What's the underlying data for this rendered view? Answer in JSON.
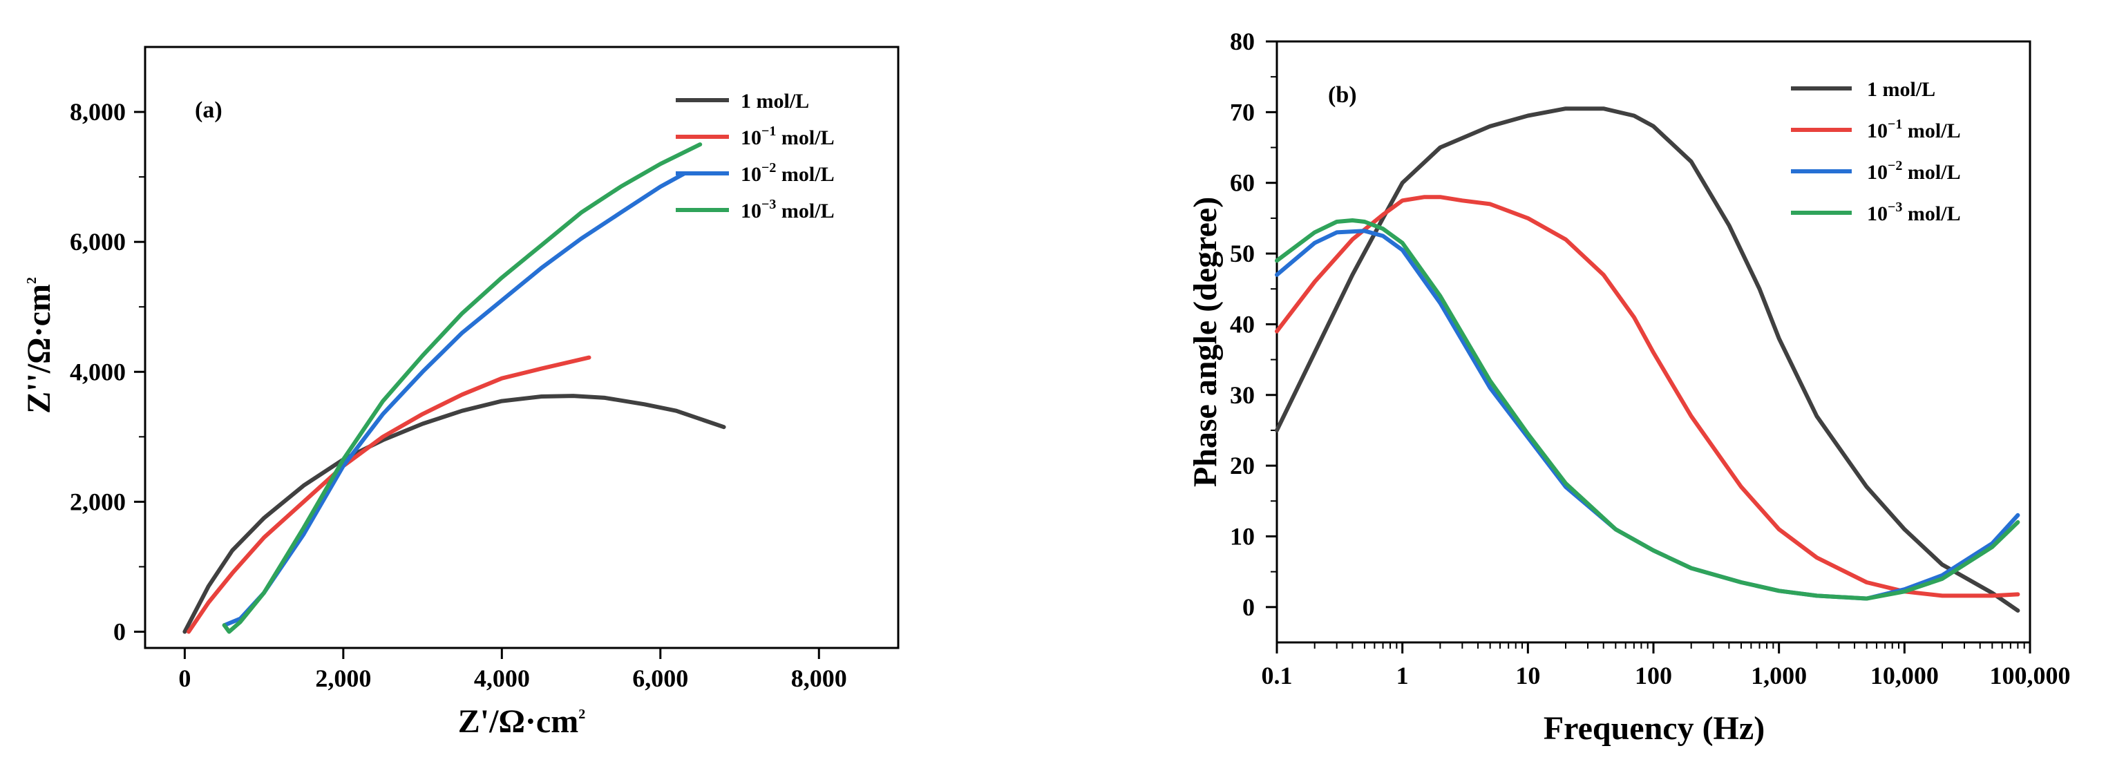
{
  "chart_data": [
    {
      "type": "line",
      "panel_label": "(a)",
      "xlabel": "Z'/Ω·cm",
      "xlabel_sup": "2",
      "ylabel": "Z''/Ω·cm",
      "ylabel_sup": "2",
      "xlim": [
        -500,
        9000
      ],
      "ylim": [
        -250,
        9000
      ],
      "xticks": [
        0,
        2000,
        4000,
        6000,
        8000
      ],
      "xtick_labels": [
        "0",
        "2,000",
        "4,000",
        "6,000",
        "8,000"
      ],
      "yticks": [
        0,
        2000,
        4000,
        6000,
        8000
      ],
      "ytick_labels": [
        "0",
        "2,000",
        "4,000",
        "6,000",
        "8,000"
      ],
      "legend_position": "top-right",
      "series": [
        {
          "name": "1 mol/L",
          "color": "#404040",
          "x": [
            0,
            300,
            600,
            1000,
            1500,
            2000,
            2500,
            3000,
            3500,
            4000,
            4500,
            4900,
            5300,
            5800,
            6200,
            6800
          ],
          "y": [
            0,
            700,
            1250,
            1750,
            2250,
            2650,
            2950,
            3200,
            3400,
            3550,
            3620,
            3630,
            3600,
            3500,
            3400,
            3150
          ]
        },
        {
          "name": "10",
          "name_sup": "−1",
          "name_suffix": " mol/L",
          "color": "#e8413c",
          "x": [
            50,
            300,
            600,
            1000,
            1500,
            2000,
            2500,
            3000,
            3500,
            4000,
            4500,
            5100
          ],
          "y": [
            0,
            450,
            900,
            1450,
            2000,
            2550,
            3000,
            3350,
            3650,
            3900,
            4050,
            4220
          ]
        },
        {
          "name": "10",
          "name_sup": "−2",
          "name_suffix": " mol/L",
          "color": "#2670d4",
          "x": [
            500,
            700,
            1000,
            1500,
            2000,
            2500,
            3000,
            3500,
            4000,
            4500,
            5000,
            5500,
            6000,
            6300
          ],
          "y": [
            100,
            200,
            600,
            1500,
            2550,
            3350,
            4000,
            4600,
            5100,
            5600,
            6050,
            6450,
            6850,
            7050
          ]
        },
        {
          "name": "10",
          "name_sup": "−3",
          "name_suffix": " mol/L",
          "color": "#2fa35a",
          "x": [
            500,
            560,
            700,
            1000,
            1500,
            2000,
            2500,
            3000,
            3500,
            4000,
            4500,
            5000,
            5500,
            6000,
            6500
          ],
          "y": [
            100,
            0,
            150,
            600,
            1600,
            2650,
            3550,
            4250,
            4900,
            5450,
            5950,
            6450,
            6850,
            7200,
            7500
          ]
        }
      ]
    },
    {
      "type": "line",
      "panel_label": "(b)",
      "xlabel": "Frequency (Hz)",
      "ylabel": "Phase angle (degree)",
      "xscale": "log",
      "xlim": [
        0.1,
        100000
      ],
      "ylim": [
        -5,
        80
      ],
      "xticks": [
        0.1,
        1,
        10,
        100,
        1000,
        10000,
        100000
      ],
      "xtick_labels": [
        "0.1",
        "1",
        "10",
        "100",
        "1,000",
        "10,000",
        "100,000"
      ],
      "yticks": [
        0,
        10,
        20,
        30,
        40,
        50,
        60,
        70,
        80
      ],
      "ytick_labels": [
        "0",
        "10",
        "20",
        "30",
        "40",
        "50",
        "60",
        "70",
        "80"
      ],
      "legend_position": "top-right",
      "series": [
        {
          "name": "1 mol/L",
          "color": "#404040",
          "x": [
            0.1,
            0.2,
            0.4,
            0.7,
            1,
            2,
            5,
            10,
            20,
            40,
            70,
            100,
            200,
            400,
            700,
            1000,
            2000,
            5000,
            10000,
            20000,
            50000,
            80000
          ],
          "y": [
            25,
            36,
            47,
            55,
            60,
            65,
            68,
            69.5,
            70.5,
            70.5,
            69.5,
            68,
            63,
            54,
            45,
            38,
            27,
            17,
            11,
            6,
            2,
            -0.5
          ]
        },
        {
          "name": "10",
          "name_sup": "−1",
          "name_suffix": " mol/L",
          "color": "#e8413c",
          "x": [
            0.1,
            0.2,
            0.4,
            0.7,
            1,
            1.5,
            2,
            3,
            5,
            10,
            20,
            40,
            70,
            100,
            200,
            500,
            1000,
            2000,
            5000,
            10000,
            20000,
            50000,
            80000
          ],
          "y": [
            39,
            46,
            52,
            55.5,
            57.5,
            58,
            58,
            57.5,
            57,
            55,
            52,
            47,
            41,
            36,
            27,
            17,
            11,
            7,
            3.5,
            2.2,
            1.6,
            1.6,
            1.8
          ]
        },
        {
          "name": "10",
          "name_sup": "−2",
          "name_suffix": " mol/L",
          "color": "#2670d4",
          "x": [
            0.1,
            0.2,
            0.3,
            0.5,
            0.7,
            1,
            2,
            5,
            10,
            20,
            50,
            100,
            200,
            500,
            1000,
            2000,
            5000,
            10000,
            20000,
            50000,
            80000
          ],
          "y": [
            47,
            51.5,
            53,
            53.2,
            52.5,
            50.5,
            43,
            31,
            24,
            17,
            11,
            8,
            5.5,
            3.5,
            2.3,
            1.6,
            1.2,
            2.5,
            4.5,
            9,
            13
          ]
        },
        {
          "name": "10",
          "name_sup": "−3",
          "name_suffix": " mol/L",
          "color": "#2fa35a",
          "x": [
            0.1,
            0.2,
            0.3,
            0.4,
            0.5,
            0.7,
            1,
            2,
            5,
            10,
            20,
            50,
            100,
            200,
            500,
            1000,
            2000,
            5000,
            10000,
            20000,
            50000,
            80000
          ],
          "y": [
            49,
            53,
            54.5,
            54.7,
            54.5,
            53.5,
            51.5,
            44,
            32,
            24.5,
            17.5,
            11,
            8,
            5.5,
            3.5,
            2.3,
            1.6,
            1.2,
            2.2,
            4,
            8.5,
            12
          ]
        }
      ]
    }
  ]
}
